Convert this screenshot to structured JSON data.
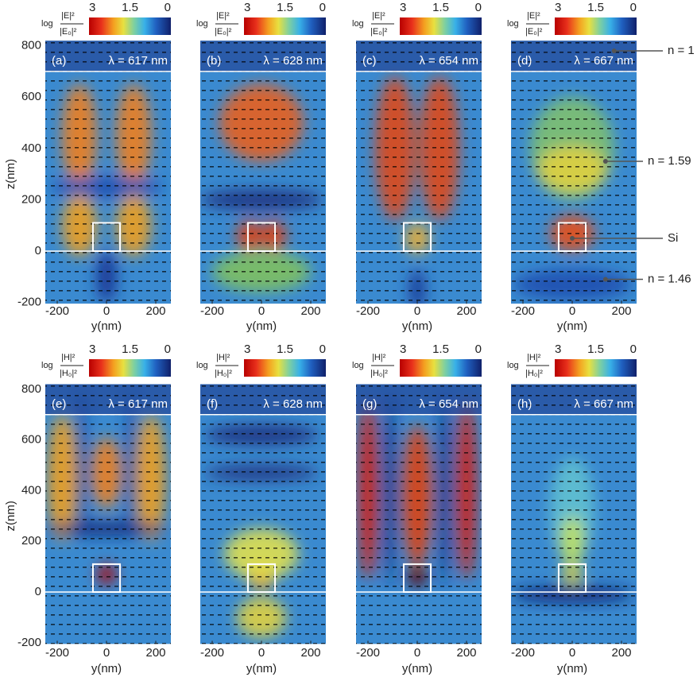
{
  "rows": [
    {
      "colorbar": {
        "prefix": "log",
        "numerator": "|E|²",
        "denominator": "|E₀|²",
        "ticks": [
          3,
          1.5,
          0
        ]
      },
      "panels": [
        {
          "letter": "(a)",
          "wavelength": "λ = 617 nm"
        },
        {
          "letter": "(b)",
          "wavelength": "λ = 628 nm"
        },
        {
          "letter": "(c)",
          "wavelength": "λ = 654 nm"
        },
        {
          "letter": "(d)",
          "wavelength": "λ = 667 nm"
        }
      ]
    },
    {
      "colorbar": {
        "prefix": "log",
        "numerator": "|H|²",
        "denominator": "|H₀|²",
        "ticks": [
          3,
          1.5,
          0
        ]
      },
      "panels": [
        {
          "letter": "(e)",
          "wavelength": "λ = 617 nm"
        },
        {
          "letter": "(f)",
          "wavelength": "λ = 628 nm"
        },
        {
          "letter": "(g)",
          "wavelength": "λ = 654 nm"
        },
        {
          "letter": "(h)",
          "wavelength": "λ = 667 nm"
        }
      ]
    }
  ],
  "z_axis": {
    "label": "z(nm)",
    "ticks": [
      800,
      600,
      400,
      200,
      0,
      -200
    ]
  },
  "y_axis": {
    "label": "y(nm)",
    "ticks": [
      -200,
      0,
      200
    ]
  },
  "annotations": [
    "n = 1",
    "n = 1.59",
    "Si",
    "n = 1.46"
  ]
}
